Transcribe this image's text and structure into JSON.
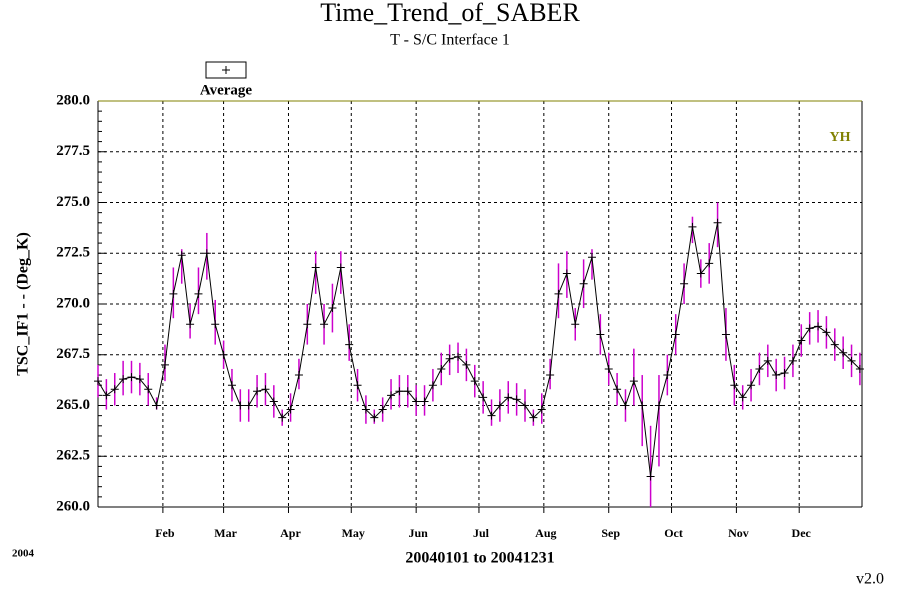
{
  "chart_data": {
    "type": "line",
    "title": "Time_Trend_of_SABER",
    "subtitle": "T - S/C Interface 1",
    "xlabel": "20040101 to 20041231",
    "ylabel": "TSC_IF1 - - (Deg_K)",
    "annotations": {
      "year": "2004",
      "corner": "YH",
      "version": "v2.0"
    },
    "xlim": [
      1,
      366
    ],
    "xticks": [
      {
        "value": 32,
        "label": "Feb"
      },
      {
        "value": 61,
        "label": "Mar"
      },
      {
        "value": 92,
        "label": "Apr"
      },
      {
        "value": 122,
        "label": "May"
      },
      {
        "value": 153,
        "label": "Jun"
      },
      {
        "value": 183,
        "label": "Jul"
      },
      {
        "value": 214,
        "label": "Aug"
      },
      {
        "value": 245,
        "label": "Sep"
      },
      {
        "value": 275,
        "label": "Oct"
      },
      {
        "value": 306,
        "label": "Nov"
      },
      {
        "value": 336,
        "label": "Dec"
      }
    ],
    "ylim": [
      260,
      280
    ],
    "yticks": [
      {
        "value": 260,
        "label": "260.0"
      },
      {
        "value": 262.5,
        "label": "262.5"
      },
      {
        "value": 265,
        "label": "265.0"
      },
      {
        "value": 267.5,
        "label": "267.5"
      },
      {
        "value": 270,
        "label": "270.0"
      },
      {
        "value": 272.5,
        "label": "272.5"
      },
      {
        "value": 275,
        "label": "275.0"
      },
      {
        "value": 277.5,
        "label": "277.5"
      },
      {
        "value": 280,
        "label": "280.0"
      }
    ],
    "grid": true,
    "x": [
      1,
      5,
      9,
      13,
      17,
      21,
      25,
      29,
      33,
      37,
      41,
      45,
      49,
      53,
      57,
      61,
      65,
      69,
      73,
      77,
      81,
      85,
      89,
      93,
      97,
      101,
      105,
      109,
      113,
      117,
      121,
      125,
      129,
      133,
      137,
      141,
      145,
      149,
      153,
      157,
      161,
      165,
      169,
      173,
      177,
      181,
      185,
      189,
      193,
      197,
      201,
      205,
      209,
      213,
      217,
      221,
      225,
      229,
      233,
      237,
      241,
      245,
      249,
      253,
      257,
      261,
      265,
      269,
      273,
      277,
      281,
      285,
      289,
      293,
      297,
      301,
      305,
      309,
      313,
      317,
      321,
      325,
      329,
      333,
      337,
      341,
      345,
      349,
      353,
      357,
      361,
      365
    ],
    "series": [
      {
        "name": "Average",
        "color": "#000000",
        "error_color": "#cc00cc",
        "values": [
          266.2,
          265.5,
          265.8,
          266.3,
          266.4,
          266.3,
          265.8,
          265.0,
          267.0,
          270.5,
          272.4,
          269.0,
          270.5,
          272.5,
          269.0,
          267.5,
          266.0,
          265.0,
          265.0,
          265.7,
          265.8,
          265.2,
          264.4,
          264.8,
          266.5,
          269.0,
          271.8,
          269.0,
          269.8,
          271.8,
          268.0,
          266.0,
          264.8,
          264.4,
          264.8,
          265.5,
          265.7,
          265.7,
          265.2,
          265.2,
          266.0,
          266.8,
          267.3,
          267.4,
          267.0,
          266.2,
          265.4,
          264.5,
          265.0,
          265.4,
          265.3,
          265.0,
          264.4,
          264.8,
          266.5,
          270.5,
          271.5,
          269.0,
          271.0,
          272.3,
          268.5,
          266.8,
          265.8,
          265.0,
          266.2,
          265.0,
          261.5,
          265.0,
          266.5,
          268.5,
          271.0,
          273.8,
          271.5,
          272.0,
          274.0,
          268.5,
          266.0,
          265.4,
          266.0,
          266.8,
          267.2,
          266.5,
          266.6,
          267.2,
          268.2,
          268.8,
          268.9,
          268.6,
          268.0,
          267.6,
          267.2,
          266.8
        ],
        "min": [
          265.4,
          264.8,
          265.0,
          265.5,
          265.6,
          265.5,
          265.0,
          264.8,
          266.2,
          269.3,
          271.0,
          268.3,
          269.5,
          271.2,
          268.0,
          266.8,
          265.2,
          264.2,
          264.2,
          264.9,
          265.0,
          264.4,
          264.0,
          264.2,
          265.8,
          268.0,
          270.5,
          268.0,
          268.6,
          270.5,
          267.2,
          265.2,
          264.1,
          264.1,
          264.2,
          264.8,
          264.9,
          264.9,
          264.5,
          264.5,
          265.2,
          266.0,
          266.5,
          266.6,
          266.2,
          265.4,
          264.6,
          264.0,
          264.2,
          264.6,
          264.5,
          264.2,
          264.0,
          264.1,
          265.8,
          269.3,
          270.3,
          268.2,
          269.8,
          271.2,
          267.5,
          266.0,
          265.0,
          264.2,
          265.0,
          263.0,
          260.0,
          262.0,
          265.5,
          267.5,
          270.0,
          273.0,
          270.8,
          271.0,
          272.8,
          267.2,
          265.0,
          264.8,
          265.2,
          266.0,
          266.4,
          265.7,
          265.8,
          266.4,
          267.4,
          268.0,
          268.1,
          267.8,
          267.2,
          266.8,
          266.4,
          266.0
        ],
        "max": [
          267.0,
          266.3,
          266.6,
          267.2,
          267.2,
          267.1,
          266.6,
          265.4,
          268.0,
          271.8,
          272.7,
          270.0,
          271.8,
          273.5,
          270.2,
          268.2,
          266.8,
          265.8,
          265.8,
          266.5,
          266.6,
          266.0,
          264.8,
          265.6,
          267.3,
          270.0,
          272.6,
          270.0,
          271.0,
          272.6,
          269.0,
          266.8,
          265.5,
          264.8,
          265.4,
          266.3,
          266.5,
          266.5,
          266.0,
          266.0,
          266.8,
          267.6,
          268.0,
          268.1,
          267.8,
          267.0,
          266.2,
          265.3,
          265.8,
          266.2,
          266.1,
          265.8,
          264.8,
          265.6,
          267.3,
          272.0,
          272.6,
          269.8,
          272.2,
          272.7,
          269.5,
          267.6,
          266.6,
          265.8,
          267.8,
          266.5,
          264.0,
          266.5,
          267.5,
          269.5,
          272.0,
          274.3,
          272.2,
          273.0,
          275.0,
          269.8,
          267.0,
          266.0,
          266.8,
          267.6,
          268.0,
          267.3,
          267.4,
          268.0,
          269.0,
          269.6,
          269.7,
          269.4,
          268.8,
          268.4,
          268.0,
          267.6
        ]
      }
    ]
  }
}
